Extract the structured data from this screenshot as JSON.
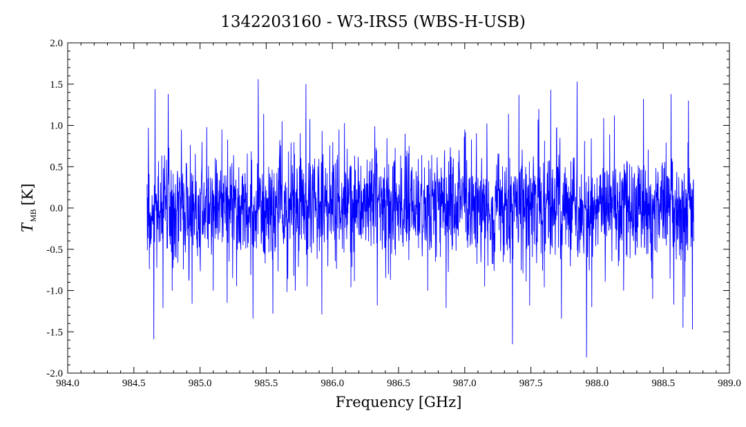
{
  "chart_data": {
    "type": "line",
    "title": "1342203160 - W3-IRS5 (WBS-H-USB)",
    "xlabel": "Frequency [GHz]",
    "ylabel": {
      "symbol": "T",
      "subscript": "MB",
      "unit": "[K]"
    },
    "xlim": [
      984.0,
      989.0
    ],
    "ylim": [
      -2.0,
      2.0
    ],
    "xticks": [
      "984.0",
      "984.5",
      "985.0",
      "985.5",
      "986.0",
      "986.5",
      "987.0",
      "987.5",
      "988.0",
      "988.5",
      "989.0"
    ],
    "yticks": [
      "-2.0",
      "-1.5",
      "-1.0",
      "-0.5",
      "0.0",
      "0.5",
      "1.0",
      "1.5",
      "2.0"
    ],
    "grid": false,
    "series": [
      {
        "color": "#0000ff",
        "x_range": [
          984.6,
          988.73
        ],
        "noise_rms_K": 0.33,
        "points": 2200,
        "peaks": [
          {
            "x": 984.61,
            "y": 0.97
          },
          {
            "x": 984.65,
            "y": -1.59
          },
          {
            "x": 984.66,
            "y": 1.44
          },
          {
            "x": 984.72,
            "y": -1.21
          },
          {
            "x": 984.76,
            "y": 1.38
          },
          {
            "x": 984.79,
            "y": -1.0
          },
          {
            "x": 984.86,
            "y": 0.95
          },
          {
            "x": 984.94,
            "y": -1.16
          },
          {
            "x": 985.05,
            "y": 0.98
          },
          {
            "x": 985.1,
            "y": -1.0
          },
          {
            "x": 985.44,
            "y": 1.56
          },
          {
            "x": 985.4,
            "y": -1.34
          },
          {
            "x": 985.48,
            "y": 1.14
          },
          {
            "x": 985.55,
            "y": -1.28
          },
          {
            "x": 985.62,
            "y": 1.05
          },
          {
            "x": 985.72,
            "y": -1.0
          },
          {
            "x": 985.8,
            "y": 1.5
          },
          {
            "x": 985.81,
            "y": -0.95
          },
          {
            "x": 985.92,
            "y": -1.29
          },
          {
            "x": 986.05,
            "y": 0.95
          },
          {
            "x": 986.14,
            "y": -0.96
          },
          {
            "x": 986.32,
            "y": 0.99
          },
          {
            "x": 986.34,
            "y": -1.18
          },
          {
            "x": 986.55,
            "y": 0.9
          },
          {
            "x": 986.72,
            "y": -1.0
          },
          {
            "x": 986.86,
            "y": -1.21
          },
          {
            "x": 987.0,
            "y": 0.95
          },
          {
            "x": 987.15,
            "y": -0.95
          },
          {
            "x": 987.33,
            "y": 1.14
          },
          {
            "x": 987.36,
            "y": -1.65
          },
          {
            "x": 987.41,
            "y": 1.37
          },
          {
            "x": 987.49,
            "y": -1.18
          },
          {
            "x": 987.56,
            "y": 1.2
          },
          {
            "x": 987.65,
            "y": 1.43
          },
          {
            "x": 987.73,
            "y": -1.34
          },
          {
            "x": 987.85,
            "y": 1.53
          },
          {
            "x": 987.92,
            "y": -1.81
          },
          {
            "x": 987.96,
            "y": -1.2
          },
          {
            "x": 988.05,
            "y": 1.09
          },
          {
            "x": 988.13,
            "y": 1.12
          },
          {
            "x": 988.2,
            "y": -1.0
          },
          {
            "x": 988.35,
            "y": 1.32
          },
          {
            "x": 988.42,
            "y": -1.1
          },
          {
            "x": 988.56,
            "y": 1.38
          },
          {
            "x": 988.58,
            "y": -1.17
          },
          {
            "x": 988.65,
            "y": -1.45
          },
          {
            "x": 988.69,
            "y": 1.3
          },
          {
            "x": 988.72,
            "y": -1.47
          }
        ]
      }
    ]
  }
}
